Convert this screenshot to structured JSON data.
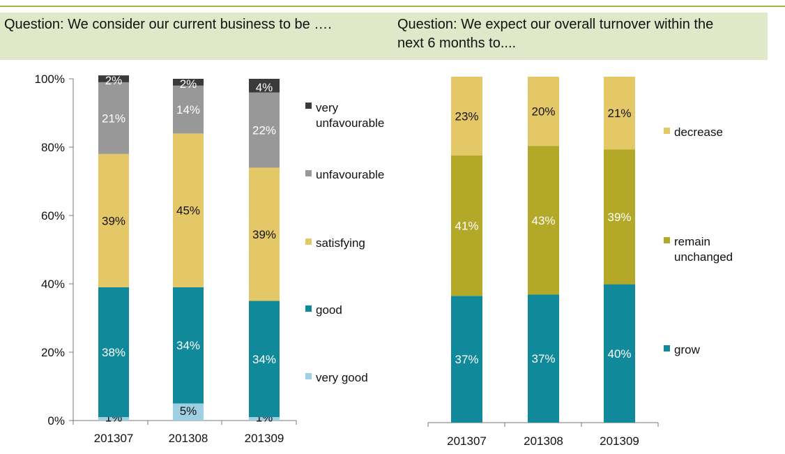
{
  "colors": {
    "very_unfavourable": "#3a3a3a",
    "unfavourable": "#989898",
    "satisfying": "#e4c766",
    "good": "#10899a",
    "very_good": "#9fcfe3",
    "decrease": "#e4c766",
    "remain_unchanged": "#b3a828",
    "grow": "#10899a",
    "header_bg": "#dfe8c8",
    "header_line": "#9ab843"
  },
  "chart_data": [
    {
      "type": "bar",
      "stacked": true,
      "title": "Question: We consider our current business to be ….",
      "categories": [
        "201307",
        "201308",
        "201309"
      ],
      "ylim": [
        0,
        100
      ],
      "y_ticks": [
        "0%",
        "20%",
        "40%",
        "60%",
        "80%",
        "100%"
      ],
      "legend_position": "right",
      "series": [
        {
          "name": "very good",
          "values": [
            1,
            5,
            1
          ],
          "labels": [
            "1%",
            "5%",
            "1%"
          ]
        },
        {
          "name": "good",
          "values": [
            38,
            34,
            34
          ],
          "labels": [
            "38%",
            "34%",
            "34%"
          ]
        },
        {
          "name": "satisfying",
          "values": [
            39,
            45,
            39
          ],
          "labels": [
            "39%",
            "45%",
            "39%"
          ]
        },
        {
          "name": "unfavourable",
          "values": [
            21,
            14,
            22
          ],
          "labels": [
            "21%",
            "14%",
            "22%"
          ]
        },
        {
          "name": "very unfavourable",
          "values": [
            2,
            2,
            4
          ],
          "labels": [
            "2%",
            "2%",
            "4%"
          ]
        }
      ]
    },
    {
      "type": "bar",
      "stacked": true,
      "title": "Question: We expect our overall turnover within the next 6 months to....",
      "categories": [
        "201307",
        "201308",
        "201309"
      ],
      "ylim": [
        0,
        100
      ],
      "legend_position": "right",
      "series": [
        {
          "name": "grow",
          "values": [
            37,
            37,
            40
          ],
          "labels": [
            "37%",
            "37%",
            "40%"
          ]
        },
        {
          "name": "remain unchanged",
          "values": [
            41,
            43,
            39
          ],
          "labels": [
            "41%",
            "43%",
            "39%"
          ]
        },
        {
          "name": "decrease",
          "values": [
            23,
            20,
            21
          ],
          "labels": [
            "23%",
            "20%",
            "21%"
          ]
        }
      ]
    }
  ],
  "header": {
    "q1_text": "Question: We consider our current business to be ….",
    "q2_line1": "Question: We expect our overall turnover within the",
    "q2_line2": "next 6 months to...."
  },
  "legend1": {
    "very_unfavourable_line1": "very",
    "very_unfavourable_line2": "unfavourable",
    "unfavourable": "unfavourable",
    "satisfying": "satisfying",
    "good": "good",
    "very_good": "very good"
  },
  "legend2": {
    "decrease": "decrease",
    "remain_line1": "remain",
    "remain_line2": "unchanged",
    "grow": "grow"
  }
}
